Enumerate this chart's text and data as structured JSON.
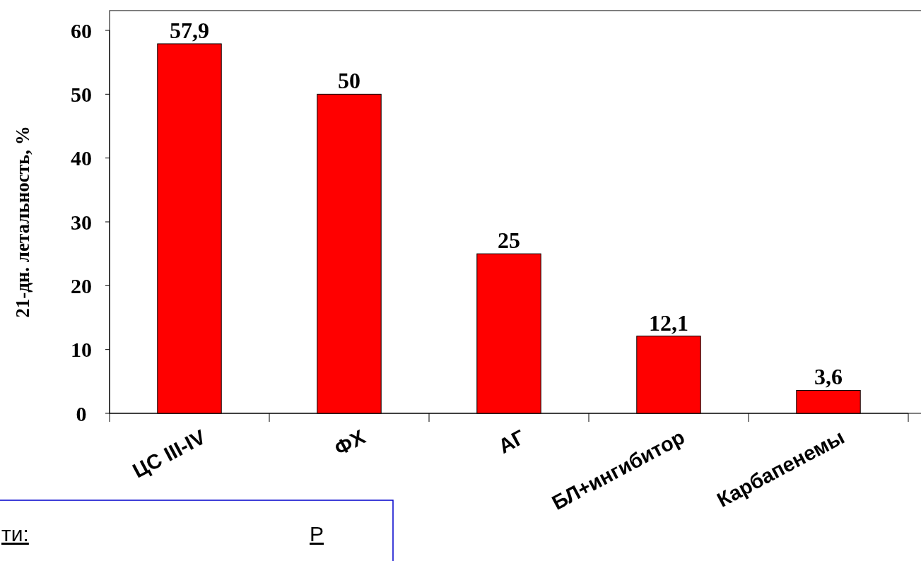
{
  "chart_data": {
    "type": "bar",
    "ylabel": "21-дн. летальность, %",
    "categories": [
      "ЦС III-IV",
      "ФХ",
      "АГ",
      "БЛ+ингибитор",
      "Карбапенемы"
    ],
    "values": [
      57.9,
      50,
      25,
      12.1,
      3.6
    ],
    "value_labels": [
      "57,9",
      "50",
      "25",
      "12,1",
      "3,6"
    ],
    "color": "#ff0000",
    "ylim": [
      0,
      60
    ],
    "yticks": [
      0,
      10,
      20,
      30,
      40,
      50,
      60
    ],
    "grid": false,
    "annotations": [
      "ти:",
      "Р"
    ]
  }
}
